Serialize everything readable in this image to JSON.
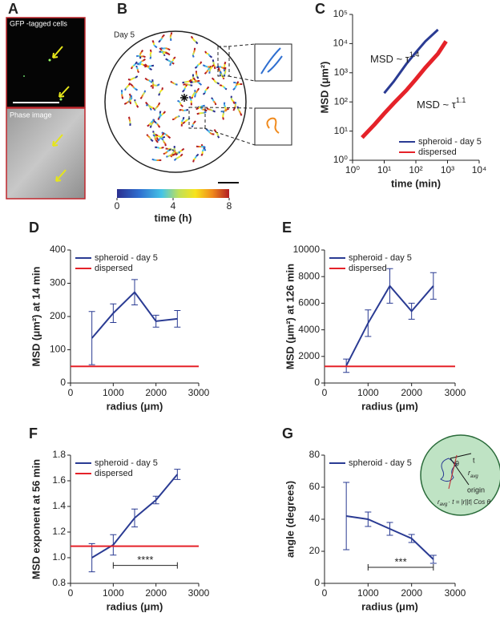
{
  "panel_a": {
    "label": "A",
    "top_caption": "GFP -tagged cells",
    "bottom_caption": "Phase image"
  },
  "panel_b": {
    "label": "B",
    "day": "Day 5",
    "colorbar": {
      "lim": [
        0,
        8
      ],
      "ticks": [
        0,
        4,
        8
      ],
      "label": "time (h)"
    }
  },
  "chart_data": [
    {
      "type": "line",
      "panel_label": "C",
      "xscale": "log",
      "yscale": "log",
      "xlabel": "time (min)",
      "ylabel": "MSD (μm²)",
      "xlim": [
        1,
        10000
      ],
      "xticks": [
        {
          "value": 1,
          "label": "10⁰"
        },
        {
          "value": 10,
          "label": "10¹"
        },
        {
          "value": 100,
          "label": "10²"
        },
        {
          "value": 1000,
          "label": "10³"
        },
        {
          "value": 10000,
          "label": "10⁴"
        }
      ],
      "ylim": [
        1,
        100000
      ],
      "yticks": [
        {
          "value": 1,
          "label": "10⁰"
        },
        {
          "value": 10,
          "label": "10¹"
        },
        {
          "value": 100,
          "label": "10²"
        },
        {
          "value": 1000,
          "label": "10³"
        },
        {
          "value": 10000,
          "label": "10⁴"
        },
        {
          "value": 100000,
          "label": "10⁵"
        }
      ],
      "legend": "lower right",
      "annotations": [
        {
          "text": "MSD ~ τ",
          "superscript": "1.4"
        },
        {
          "text": "MSD ~ τ",
          "superscript": "1.1"
        }
      ],
      "series": [
        {
          "name": "spheroid - day 5",
          "color": "#2a3b93",
          "x": [
            10,
            20,
            50,
            100,
            200,
            500
          ],
          "values": [
            200,
            500,
            2000,
            5000,
            12000,
            30000
          ]
        },
        {
          "name": "dispersed",
          "color": "#e52229",
          "x": [
            2,
            5,
            10,
            20,
            50,
            100,
            200,
            500,
            900
          ],
          "values": [
            6,
            17,
            40,
            90,
            250,
            600,
            1500,
            4500,
            12000
          ]
        }
      ]
    },
    {
      "type": "line",
      "panel_label": "D",
      "xlabel": "radius (μm)",
      "ylabel": "MSD (μm²) at 14 min",
      "xlim": [
        0,
        3000
      ],
      "xticks": [
        0,
        1000,
        2000,
        3000
      ],
      "ylim": [
        0,
        400
      ],
      "yticks": [
        0,
        100,
        200,
        300,
        400
      ],
      "legend": "upper left",
      "series": [
        {
          "name": "spheroid - day 5",
          "color": "#2a3b93",
          "x": [
            500,
            1000,
            1500,
            2000,
            2500
          ],
          "values": [
            135,
            210,
            273,
            186,
            193
          ],
          "errors": [
            80,
            28,
            38,
            18,
            25
          ]
        },
        {
          "name": "dispersed",
          "color": "#e52229",
          "hline": 50
        }
      ]
    },
    {
      "type": "line",
      "panel_label": "E",
      "xlabel": "radius (μm)",
      "ylabel": "MSD (μm²) at 126 min",
      "xlim": [
        0,
        3000
      ],
      "xticks": [
        0,
        1000,
        2000,
        3000
      ],
      "ylim": [
        0,
        10000
      ],
      "yticks": [
        0,
        2000,
        4000,
        6000,
        8000,
        10000
      ],
      "legend": "upper left",
      "series": [
        {
          "name": "spheroid - day 5",
          "color": "#2a3b93",
          "x": [
            500,
            1000,
            1500,
            2000,
            2500
          ],
          "values": [
            1300,
            4500,
            7300,
            5400,
            7300
          ],
          "errors": [
            500,
            1000,
            1300,
            600,
            1000
          ]
        },
        {
          "name": "dispersed",
          "color": "#e52229",
          "hline": 1250
        }
      ]
    },
    {
      "type": "line",
      "panel_label": "F",
      "xlabel": "radius (μm)",
      "ylabel": "MSD exponent at 56 min",
      "xlim": [
        0,
        3000
      ],
      "xticks": [
        0,
        1000,
        2000,
        3000
      ],
      "ylim": [
        0.8,
        1.8
      ],
      "yticks": [
        0.8,
        {
          "value": 1,
          "label": "1.0"
        },
        1.2,
        1.4,
        1.6,
        1.8
      ],
      "legend": "upper left",
      "significance": {
        "x": [
          1000,
          2500
        ],
        "y": 0.94,
        "label": "****"
      },
      "series": [
        {
          "name": "spheroid - day 5",
          "color": "#2a3b93",
          "x": [
            500,
            1000,
            1500,
            2000,
            2500
          ],
          "values": [
            1.0,
            1.1,
            1.31,
            1.45,
            1.65
          ],
          "errors": [
            0.11,
            0.08,
            0.07,
            0.03,
            0.04
          ]
        },
        {
          "name": "dispersed",
          "color": "#e52229",
          "hline": 1.09
        }
      ]
    },
    {
      "type": "line",
      "panel_label": "G",
      "xlabel": "radius (μm)",
      "ylabel": "angle (degrees)",
      "xlim": [
        0,
        3000
      ],
      "xticks": [
        0,
        1000,
        2000,
        3000
      ],
      "ylim": [
        0,
        80
      ],
      "yticks": [
        0,
        20,
        40,
        60,
        80
      ],
      "legend": "upper left",
      "significance": {
        "x": [
          1000,
          2500
        ],
        "y": 10,
        "label": "***"
      },
      "inset": {
        "theta": "θ",
        "t": "t",
        "r": "r",
        "sub": "avg",
        "origin": "origin",
        "formula": "· t = |r||t| Cos θ"
      },
      "series": [
        {
          "name": "spheroid - day 5",
          "color": "#2a3b93",
          "x": [
            500,
            1000,
            1500,
            2000,
            2500
          ],
          "values": [
            42,
            40,
            34,
            28,
            15
          ],
          "errors": [
            21,
            4.5,
            4,
            2.5,
            2.5
          ]
        }
      ]
    }
  ]
}
